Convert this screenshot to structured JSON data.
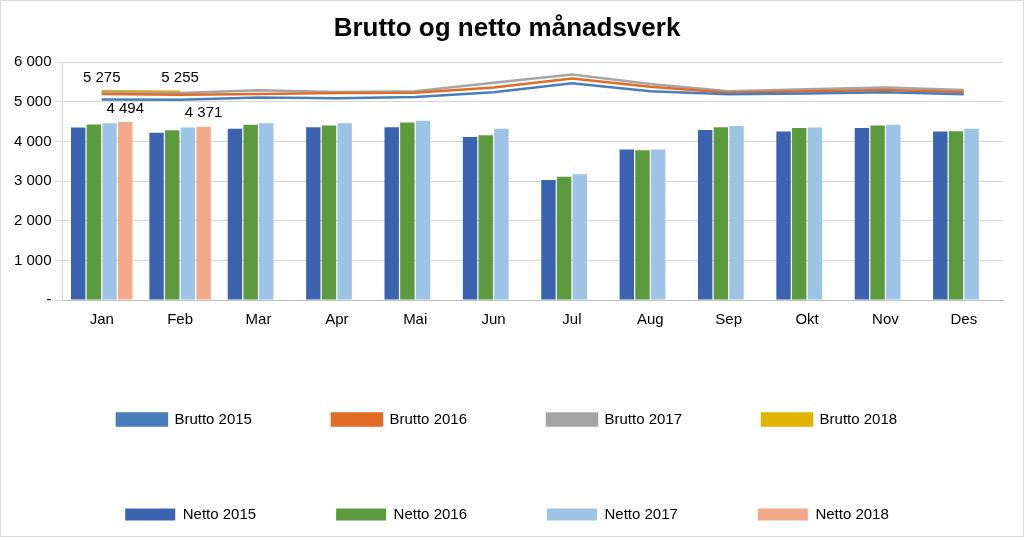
{
  "chart_data": {
    "type": "bar",
    "title": "Brutto og netto månadsverk",
    "categories": [
      "Jan",
      "Feb",
      "Mar",
      "Apr",
      "Mai",
      "Jun",
      "Jul",
      "Aug",
      "Sep",
      "Okt",
      "Nov",
      "Des"
    ],
    "series": [
      {
        "name": "Netto 2015",
        "type": "bar",
        "color": "#3c63b0",
        "values": [
          4350,
          4220,
          4320,
          4360,
          4360,
          4110,
          3030,
          3800,
          4290,
          4250,
          4340,
          4250
        ]
      },
      {
        "name": "Netto 2016",
        "type": "bar",
        "color": "#5b9b3d",
        "values": [
          4430,
          4280,
          4420,
          4400,
          4480,
          4160,
          3110,
          3780,
          4360,
          4340,
          4400,
          4260
        ]
      },
      {
        "name": "Netto 2017",
        "type": "bar",
        "color": "#9dc3e6",
        "values": [
          4460,
          4350,
          4460,
          4460,
          4520,
          4320,
          3170,
          3800,
          4390,
          4350,
          4420,
          4320
        ]
      },
      {
        "name": "Netto 2018",
        "type": "bar",
        "color": "#f4a98a",
        "values": [
          4494,
          4371,
          null,
          null,
          null,
          null,
          null,
          null,
          null,
          null,
          null,
          null
        ],
        "value_labels": [
          "4 494",
          "4 371",
          null,
          null,
          null,
          null,
          null,
          null,
          null,
          null,
          null,
          null
        ]
      },
      {
        "name": "Brutto 2015",
        "type": "line",
        "color": "#4a7ebb",
        "values": [
          5060,
          5050,
          5110,
          5090,
          5120,
          5240,
          5470,
          5270,
          5190,
          5210,
          5240,
          5190
        ]
      },
      {
        "name": "Brutto 2016",
        "type": "line",
        "color": "#e06c26",
        "values": [
          5200,
          5180,
          5200,
          5220,
          5230,
          5360,
          5590,
          5380,
          5230,
          5270,
          5300,
          5250
        ]
      },
      {
        "name": "Brutto 2017",
        "type": "line",
        "color": "#a5a5a5",
        "values": [
          5240,
          5220,
          5290,
          5250,
          5270,
          5480,
          5690,
          5450,
          5270,
          5320,
          5360,
          5300
        ]
      },
      {
        "name": "Brutto 2018",
        "type": "line",
        "color": "#e0b400",
        "values": [
          5275,
          5255,
          null,
          null,
          null,
          null,
          null,
          null,
          null,
          null,
          null,
          null
        ],
        "value_labels": [
          "5 275",
          "5 255",
          null,
          null,
          null,
          null,
          null,
          null,
          null,
          null,
          null,
          null
        ]
      }
    ],
    "ylim": [
      0,
      6000
    ],
    "yticks": [
      {
        "value": 0,
        "label": "-"
      },
      {
        "value": 1000,
        "label": "1 000"
      },
      {
        "value": 2000,
        "label": "2 000"
      },
      {
        "value": 3000,
        "label": "3 000"
      },
      {
        "value": 4000,
        "label": "4 000"
      },
      {
        "value": 5000,
        "label": "5 000"
      },
      {
        "value": 6000,
        "label": "6 000"
      }
    ],
    "grid": true,
    "legend": "bottom",
    "data_labels": true
  }
}
